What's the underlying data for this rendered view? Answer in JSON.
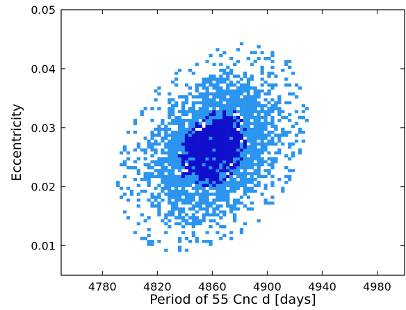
{
  "chart_data": {
    "type": "heatmap",
    "title": "",
    "xlabel": "Period of 55 Cnc d [days]",
    "ylabel": "Eccentricity",
    "xlim": [
      4750,
      5000
    ],
    "ylim": [
      0.005,
      0.05
    ],
    "x_ticks": [
      4780,
      4820,
      4860,
      4900,
      4940,
      4980
    ],
    "y_ticks": [
      0.01,
      0.02,
      0.03,
      0.04,
      0.05
    ],
    "x_tick_labels": [
      "4780",
      "4820",
      "4860",
      "4900",
      "4940",
      "4980"
    ],
    "y_tick_labels": [
      "0.01",
      "0.02",
      "0.03",
      "0.04",
      "0.05"
    ],
    "bin_size": {
      "x": 2.5,
      "y": 0.0005
    },
    "density_levels": [
      {
        "level": "outer",
        "color": "#2b95f0"
      },
      {
        "level": "inner",
        "color": "#1010cc"
      }
    ],
    "distribution": {
      "center": {
        "x": 4861,
        "y": 0.0265
      },
      "inner_halfwidth": {
        "x": 22,
        "y": 0.0055
      },
      "outer_halfwidth": {
        "x": 52,
        "y": 0.0125
      },
      "correlation": "positive"
    }
  }
}
